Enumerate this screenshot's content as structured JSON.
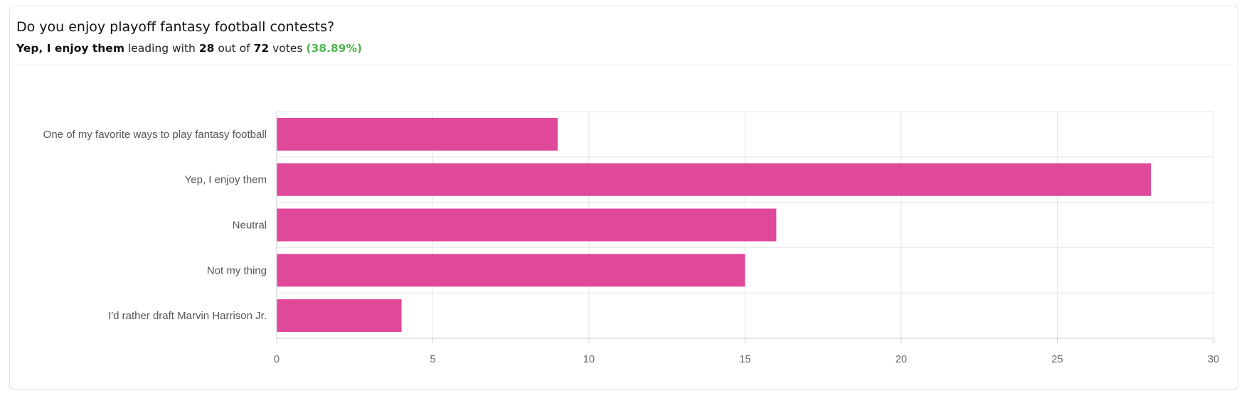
{
  "poll": {
    "question": "Do you enjoy playoff fantasy football contests?",
    "leader_label": "Yep, I enjoy them",
    "leading_with_text": "leading with",
    "leader_votes": "28",
    "out_of_text": "out of",
    "total_votes": "72",
    "votes_text": "votes",
    "leader_percent": "(38.89%)"
  },
  "colors": {
    "bar": "#e0489a",
    "percent": "#4cb84c",
    "grid": "#e6e6e6",
    "axis": "#cccccc"
  },
  "chart_data": {
    "type": "bar",
    "orientation": "horizontal",
    "title": "",
    "xlabel": "",
    "ylabel": "",
    "categories": [
      "One of my favorite ways to play fantasy football",
      "Yep, I enjoy them",
      "Neutral",
      "Not my thing",
      "I'd rather draft Marvin Harrison Jr."
    ],
    "values": [
      9,
      28,
      16,
      15,
      4
    ],
    "xlim": [
      0,
      30
    ],
    "xticks": [
      "0",
      "5",
      "10",
      "15",
      "20",
      "25",
      "30"
    ],
    "grid": true,
    "legend": "none"
  }
}
